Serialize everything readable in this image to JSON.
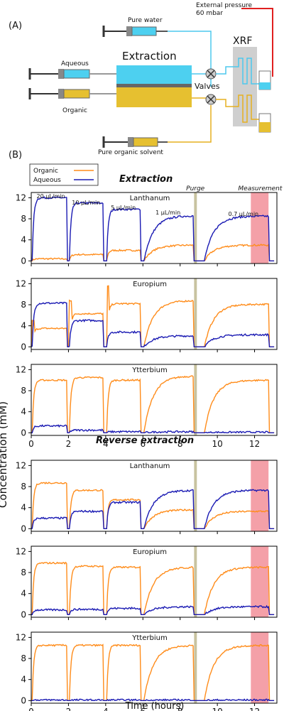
{
  "panel_a": {
    "label": "(A)",
    "external_pressure": "External pressure",
    "pressure_value": "60 mbar",
    "pure_water": "Pure water",
    "aqueous": "Aqueous",
    "organic": "Organic",
    "extraction": "Extraction",
    "valves": "Valves",
    "xrf": "XRF",
    "pure_organic": "Pure organic solvent"
  },
  "panel_b_label": "(B)",
  "legend": {
    "organic": "Organic",
    "aqueous": "Aqueous"
  },
  "section_titles": {
    "extraction": "Extraction",
    "reverse": "Reverse extraction"
  },
  "flow_labels": [
    "20 μL/min",
    "10 μL/min",
    "5 μL/min",
    "1 μL/min",
    "0.7 μL/min"
  ],
  "purge_label": "Purge",
  "measurement_label": "Measurement",
  "ylabel": "Concentration (mM)",
  "xlabel": "Time (hours)",
  "colors": {
    "organic": "#ff8c1a",
    "aqueous": "#1a1ab3",
    "purge": "#c8c3a0",
    "measurement": "#f4a0a8"
  },
  "chart_data": {
    "type": "line",
    "xlim": [
      0,
      13.2
    ],
    "ylim": [
      -0.5,
      13
    ],
    "yticks": [
      0,
      4,
      8,
      12
    ],
    "xticks": [
      0,
      2,
      4,
      6,
      8,
      10,
      12
    ],
    "purge_x": [
      8.75,
      8.9
    ],
    "measurement_x": [
      11.8,
      12.75
    ],
    "segments": [
      [
        0.05,
        1.95
      ],
      [
        2.05,
        3.85
      ],
      [
        4.05,
        5.85
      ],
      [
        6.05,
        8.7
      ],
      [
        9.3,
        12.8
      ]
    ],
    "subplots": [
      {
        "element": "Lanthanum",
        "group": "extraction",
        "organic_levels": [
          0.4,
          1.2,
          2.0,
          3.0,
          3.0
        ],
        "aqueous_levels": [
          12.0,
          11.0,
          9.8,
          8.6,
          8.5
        ]
      },
      {
        "element": "Europium",
        "group": "extraction",
        "organic_levels": [
          3.5,
          6.3,
          8.2,
          8.8,
          8.1
        ],
        "aqueous_levels": [
          8.3,
          5.0,
          2.8,
          2.1,
          2.3
        ]
      },
      {
        "element": "Ytterbium",
        "group": "extraction",
        "organic_levels": [
          10.0,
          10.5,
          10.0,
          10.8,
          10.0
        ],
        "aqueous_levels": [
          1.3,
          0.5,
          0.2,
          0.2,
          0.1
        ]
      },
      {
        "element": "Lanthanum",
        "group": "reverse",
        "organic_levels": [
          8.7,
          7.3,
          5.5,
          3.6,
          3.3
        ],
        "aqueous_levels": [
          2.0,
          3.3,
          5.0,
          7.3,
          7.3
        ]
      },
      {
        "element": "Europium",
        "group": "reverse",
        "organic_levels": [
          9.8,
          9.2,
          9.0,
          9.0,
          9.0
        ],
        "aqueous_levels": [
          0.9,
          1.0,
          1.2,
          1.5,
          1.5
        ]
      },
      {
        "element": "Ytterbium",
        "group": "reverse",
        "organic_levels": [
          10.5,
          10.5,
          10.5,
          10.5,
          10.5
        ],
        "aqueous_levels": [
          0.1,
          0.1,
          0.1,
          0.1,
          0.1
        ]
      }
    ]
  }
}
